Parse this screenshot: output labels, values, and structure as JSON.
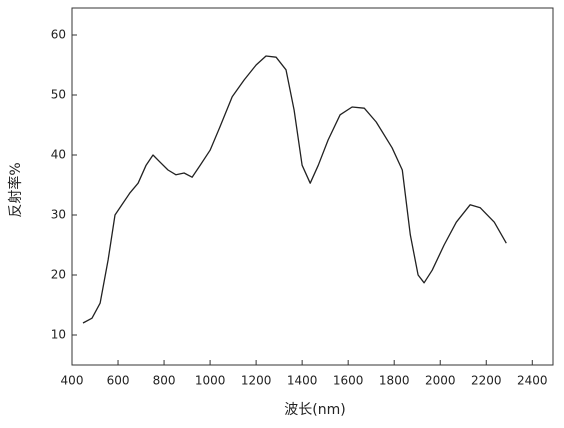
{
  "chart_data": {
    "type": "line",
    "x_label": "波长(nm)",
    "y_label": "反射率%",
    "xlim": [
      400,
      2490
    ],
    "ylim": [
      5,
      64.5
    ],
    "xticks": [
      400,
      600,
      800,
      1000,
      1200,
      1400,
      1600,
      1800,
      2000,
      2200,
      2400
    ],
    "yticks": [
      10,
      20,
      30,
      40,
      50,
      60
    ],
    "grid": false,
    "series": [
      {
        "color": "#222222",
        "x": [
          448,
          487,
          522,
          557,
          587,
          617,
          652,
          687,
          722,
          752,
          783,
          817,
          852,
          887,
          922,
          957,
          1000,
          1043,
          1096,
          1148,
          1200,
          1243,
          1287,
          1330,
          1365,
          1400,
          1435,
          1470,
          1513,
          1565,
          1617,
          1670,
          1722,
          1791,
          1835,
          1870,
          1904,
          1930,
          1965,
          2017,
          2070,
          2130,
          2174,
          2235,
          2287
        ],
        "values": [
          12,
          12.8,
          15.3,
          22.5,
          30,
          31.7,
          33.7,
          35.3,
          38.3,
          40,
          38.8,
          37.5,
          36.7,
          37,
          36.3,
          38.3,
          40.8,
          44.7,
          49.7,
          52.5,
          55,
          56.5,
          56.3,
          54.2,
          47.5,
          38.3,
          35.3,
          38.3,
          42.5,
          46.7,
          48,
          47.8,
          45.5,
          41.2,
          37.5,
          26.7,
          20,
          18.7,
          20.8,
          25,
          28.8,
          31.7,
          31.2,
          28.8,
          25.3
        ]
      }
    ]
  }
}
